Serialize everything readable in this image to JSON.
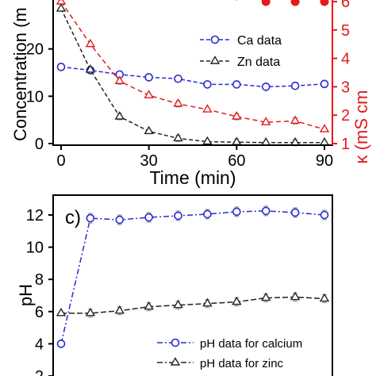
{
  "colors": {
    "blue": "#2a2ad0",
    "black": "#222222",
    "red": "#e41a1c",
    "grey": "#888888"
  },
  "chart_data": [
    {
      "type": "line",
      "title": "",
      "xlabel": "Time (min)",
      "ylabel": "Concentration (m",
      "y2label": "κ (mS cm",
      "xlim": [
        -2,
        93
      ],
      "ylim": [
        -0.5,
        29
      ],
      "y2lim": [
        1,
        6.3
      ],
      "xticks": [
        "0",
        "30",
        "60",
        "90"
      ],
      "yticks": [
        "0",
        "10",
        "20"
      ],
      "y2ticks": [
        "1",
        "2",
        "3",
        "4",
        "5",
        "6"
      ],
      "x": [
        0,
        10,
        20,
        30,
        40,
        50,
        60,
        70,
        80,
        90
      ],
      "series": [
        {
          "name": "Ca data",
          "axis": "left",
          "marker": "circle",
          "color": "#2a2ad0",
          "values": [
            16.2,
            15.5,
            14.6,
            14.0,
            13.7,
            12.5,
            12.5,
            12.0,
            12.2,
            12.6
          ]
        },
        {
          "name": "Zn data",
          "axis": "left",
          "marker": "triangle",
          "color": "#222222",
          "values": [
            28.5,
            15.6,
            5.7,
            2.6,
            1.1,
            0.4,
            0.3,
            0.2,
            0.2,
            0.2
          ]
        },
        {
          "axis": "right",
          "marker": "triangle",
          "color": "#e41a1c",
          "values": [
            6.0,
            4.5,
            3.2,
            2.7,
            2.4,
            2.2,
            1.95,
            1.75,
            1.8,
            1.5
          ]
        },
        {
          "axis": "right",
          "marker": "dot",
          "color": "#e41a1c",
          "values": [
            6.2,
            6.3,
            6.4,
            6.35,
            6.3,
            6.25,
            6.2,
            6.0,
            6.0,
            6.0
          ]
        }
      ],
      "legend": "center-right",
      "grid": false
    },
    {
      "type": "line",
      "title": "",
      "panel_label": "c)",
      "xlabel": "",
      "ylabel": "pH",
      "xlim": [
        -2,
        93
      ],
      "ylim": [
        1.9,
        13.2
      ],
      "yticks": [
        "2",
        "4",
        "6",
        "8",
        "10",
        "12"
      ],
      "x": [
        0,
        10,
        20,
        30,
        40,
        50,
        60,
        70,
        80,
        90
      ],
      "series": [
        {
          "name": "pH data for calcium",
          "marker": "circle",
          "color": "#2a2ad0",
          "values": [
            4.0,
            11.8,
            11.7,
            11.85,
            11.95,
            12.05,
            12.2,
            12.25,
            12.15,
            12.0
          ]
        },
        {
          "name": "pH data for zinc",
          "marker": "triangle",
          "color": "#222222",
          "values": [
            5.9,
            5.9,
            6.05,
            6.3,
            6.4,
            6.5,
            6.6,
            6.85,
            6.9,
            6.8
          ]
        }
      ],
      "legend": "bottom-right",
      "grid": false
    }
  ]
}
